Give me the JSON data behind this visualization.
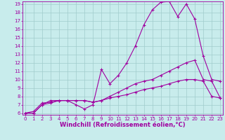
{
  "xlabel": "Windchill (Refroidissement éolien,°C)",
  "bg_color": "#c8ecec",
  "line_color": "#a000a0",
  "xlim": [
    0,
    23
  ],
  "ylim": [
    6,
    19
  ],
  "xticks": [
    0,
    1,
    2,
    3,
    4,
    5,
    6,
    7,
    8,
    9,
    10,
    11,
    12,
    13,
    14,
    15,
    16,
    17,
    18,
    19,
    20,
    21,
    22,
    23
  ],
  "yticks": [
    6,
    7,
    8,
    9,
    10,
    11,
    12,
    13,
    14,
    15,
    16,
    17,
    18,
    19
  ],
  "line1_x": [
    0,
    1,
    2,
    3,
    4,
    5,
    6,
    7,
    8,
    9,
    10,
    11,
    12,
    13,
    14,
    15,
    16,
    17,
    18,
    19,
    20,
    21,
    22,
    23
  ],
  "line1_y": [
    6.0,
    6.2,
    7.2,
    7.3,
    7.5,
    7.5,
    7.0,
    6.5,
    7.0,
    11.2,
    9.5,
    10.5,
    12.0,
    14.0,
    16.5,
    18.3,
    19.2,
    19.3,
    17.5,
    19.0,
    17.2,
    12.8,
    10.0,
    9.8
  ],
  "line2_x": [
    0,
    1,
    2,
    3,
    4,
    5,
    6,
    7,
    8,
    9,
    10,
    11,
    12,
    13,
    14,
    15,
    16,
    17,
    18,
    19,
    20,
    21,
    22,
    23
  ],
  "line2_y": [
    6.0,
    6.0,
    7.0,
    7.5,
    7.5,
    7.5,
    7.5,
    7.5,
    7.3,
    7.5,
    8.0,
    8.5,
    9.0,
    9.5,
    9.8,
    10.0,
    10.5,
    11.0,
    11.5,
    12.0,
    12.3,
    10.0,
    9.8,
    7.8
  ],
  "line3_x": [
    0,
    1,
    2,
    3,
    4,
    5,
    6,
    7,
    8,
    9,
    10,
    11,
    12,
    13,
    14,
    15,
    16,
    17,
    18,
    19,
    20,
    21,
    22,
    23
  ],
  "line3_y": [
    6.0,
    6.0,
    7.0,
    7.2,
    7.5,
    7.5,
    7.5,
    7.5,
    7.3,
    7.5,
    7.8,
    8.0,
    8.2,
    8.5,
    8.8,
    9.0,
    9.2,
    9.5,
    9.8,
    10.0,
    10.0,
    9.8,
    8.0,
    7.8
  ],
  "marker": "+",
  "markersize": 3,
  "linewidth": 0.8,
  "xlabel_fontsize": 6,
  "tick_fontsize": 5,
  "grid_color": "#a0cccc",
  "grid_alpha": 1.0,
  "grid_linewidth": 0.5
}
